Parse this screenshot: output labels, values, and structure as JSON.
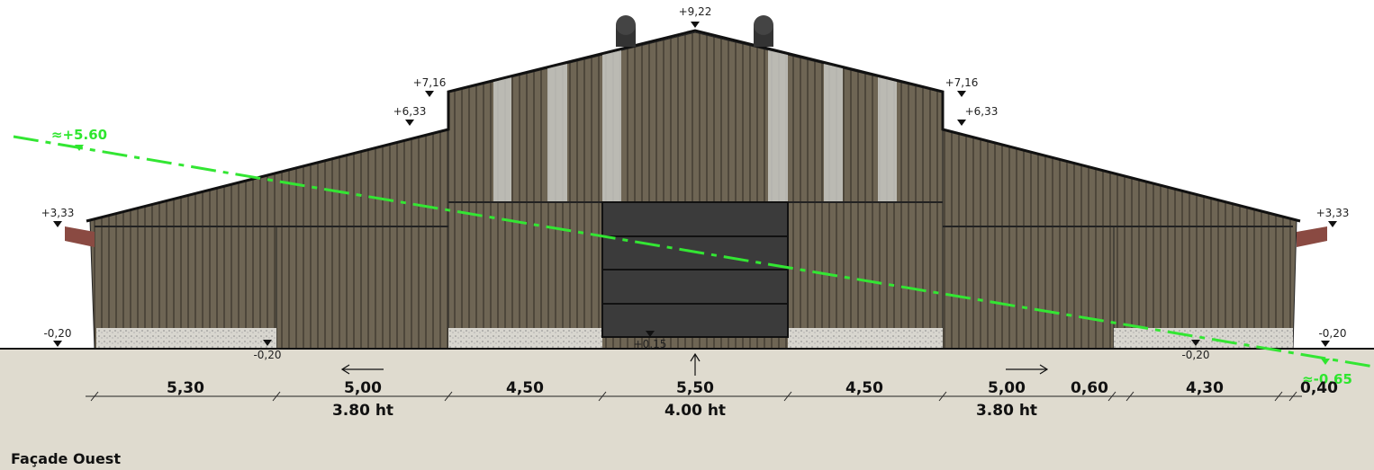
{
  "title": "Façade Ouest",
  "levels": [
    {
      "label": "+9,22"
    },
    {
      "label": "+7,16"
    },
    {
      "label": "+6,33"
    },
    {
      "label": "+3,33"
    },
    {
      "label": "-0,20"
    },
    {
      "label": "-0,20"
    },
    {
      "label": "+0,15"
    },
    {
      "label": "-0,20"
    },
    {
      "label": "+7,16"
    },
    {
      "label": "+6,33"
    },
    {
      "label": "+3,33"
    },
    {
      "label": "-0,20"
    }
  ],
  "terrain_levels": [
    {
      "label": "≈+5.60"
    },
    {
      "label": "≈-0.65"
    }
  ],
  "dimensions": [
    "5,30",
    "5,00",
    "4,50",
    "5,50",
    "4,50",
    "5,00",
    "0,60",
    "4,30",
    "0,40"
  ],
  "opening_heights": [
    "3.80 ht",
    "4.00 ht",
    "3.80 ht"
  ]
}
